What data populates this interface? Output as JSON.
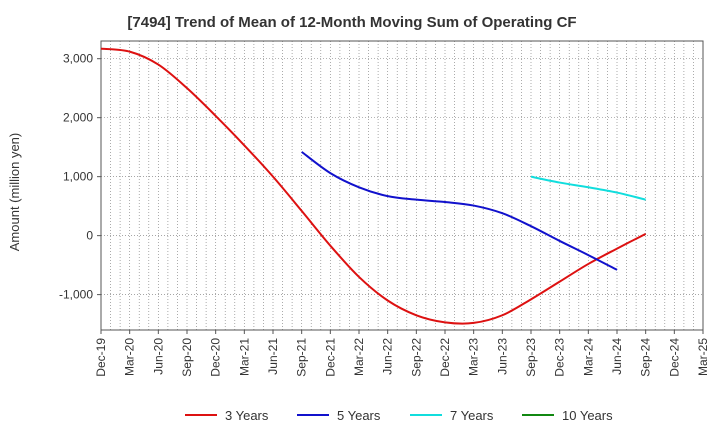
{
  "chart_data": {
    "type": "line",
    "title": "[7494]  Trend of Mean of 12-Month Moving Sum of Operating CF",
    "xlabel": "",
    "ylabel": "Amount (million yen)",
    "ylim": [
      -1600,
      3300
    ],
    "yticks": [
      -1000,
      0,
      1000,
      2000,
      3000
    ],
    "ytick_labels": [
      "-1,000",
      "0",
      "1,000",
      "2,000",
      "3,000"
    ],
    "grid": true,
    "legend_position": "bottom",
    "x_tick_labels": [
      "Dec-19",
      "Mar-20",
      "Jun-20",
      "Sep-20",
      "Dec-20",
      "Mar-21",
      "Jun-21",
      "Sep-21",
      "Dec-21",
      "Mar-22",
      "Jun-22",
      "Sep-22",
      "Dec-22",
      "Mar-23",
      "Jun-23",
      "Sep-23",
      "Dec-23",
      "Mar-24",
      "Jun-24",
      "Sep-24",
      "Dec-24",
      "Mar-25"
    ],
    "series": [
      {
        "name": "3 Years",
        "color": "#dd1111",
        "points": [
          [
            "Dec-19",
            3170
          ],
          [
            "Mar-20",
            3120
          ],
          [
            "Jun-20",
            2900
          ],
          [
            "Sep-20",
            2500
          ],
          [
            "Dec-20",
            2030
          ],
          [
            "Mar-21",
            1530
          ],
          [
            "Jun-21",
            1000
          ],
          [
            "Sep-21",
            420
          ],
          [
            "Dec-21",
            -170
          ],
          [
            "Mar-22",
            -700
          ],
          [
            "Jun-22",
            -1100
          ],
          [
            "Sep-22",
            -1350
          ],
          [
            "Dec-22",
            -1470
          ],
          [
            "Mar-23",
            -1480
          ],
          [
            "Jun-23",
            -1350
          ],
          [
            "Sep-23",
            -1080
          ],
          [
            "Dec-23",
            -780
          ],
          [
            "Mar-24",
            -480
          ],
          [
            "Jun-24",
            -220
          ],
          [
            "Sep-24",
            30
          ]
        ]
      },
      {
        "name": "5 Years",
        "color": "#1111cc",
        "points": [
          [
            "Sep-21",
            1420
          ],
          [
            "Dec-21",
            1060
          ],
          [
            "Mar-22",
            820
          ],
          [
            "Jun-22",
            670
          ],
          [
            "Sep-22",
            610
          ],
          [
            "Dec-22",
            570
          ],
          [
            "Mar-23",
            510
          ],
          [
            "Jun-23",
            380
          ],
          [
            "Sep-23",
            160
          ],
          [
            "Dec-23",
            -90
          ],
          [
            "Mar-24",
            -330
          ],
          [
            "Jun-24",
            -580
          ]
        ]
      },
      {
        "name": "7 Years",
        "color": "#11dddd",
        "points": [
          [
            "Sep-23",
            1000
          ],
          [
            "Dec-23",
            900
          ],
          [
            "Mar-24",
            820
          ],
          [
            "Jun-24",
            730
          ],
          [
            "Sep-24",
            610
          ]
        ]
      },
      {
        "name": "10 Years",
        "color": "#118811",
        "points": []
      }
    ]
  }
}
